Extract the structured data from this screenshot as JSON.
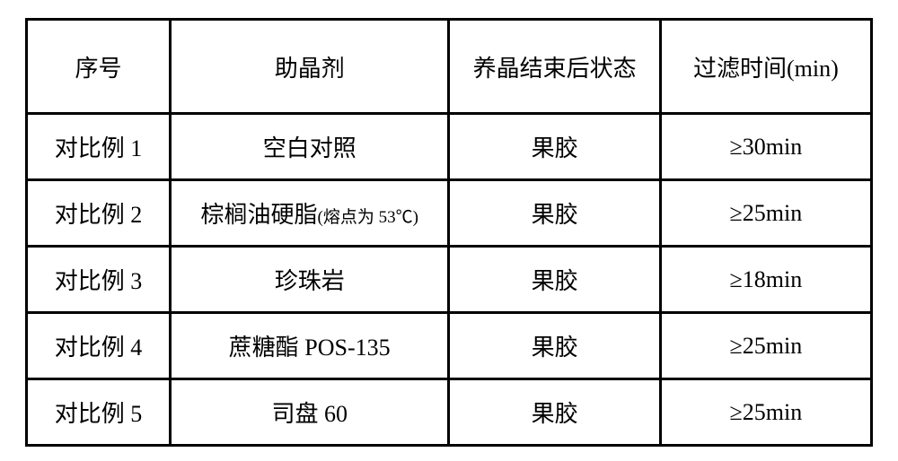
{
  "table": {
    "headers": {
      "col1": "序号",
      "col2": "助晶剂",
      "col3": "养晶结束后状态",
      "col4": "过滤时间(min)"
    },
    "rows": [
      {
        "index": "对比例 1",
        "agent": "空白对照",
        "agent_note": "",
        "state": "果胶",
        "time": "≥30min"
      },
      {
        "index": "对比例 2",
        "agent": "棕榈油硬脂",
        "agent_note": "(熔点为 53℃)",
        "state": "果胶",
        "time": "≥25min"
      },
      {
        "index": "对比例 3",
        "agent": "珍珠岩",
        "agent_note": "",
        "state": "果胶",
        "time": "≥18min"
      },
      {
        "index": "对比例 4",
        "agent": "蔗糖酯 POS-135",
        "agent_note": "",
        "state": "果胶",
        "time": "≥25min"
      },
      {
        "index": "对比例 5",
        "agent": "司盘 60",
        "agent_note": "",
        "state": "果胶",
        "time": "≥25min"
      }
    ]
  },
  "style": {
    "border_color": "#000000",
    "border_width": 3,
    "background_color": "#ffffff",
    "font_family": "SimSun",
    "header_fontsize": 26,
    "cell_fontsize": 26,
    "note_fontsize": 19,
    "header_row_height": 105,
    "data_row_height": 74,
    "column_widths": {
      "index": "17%",
      "agent": "33%",
      "state": "25%",
      "time": "25%"
    }
  }
}
